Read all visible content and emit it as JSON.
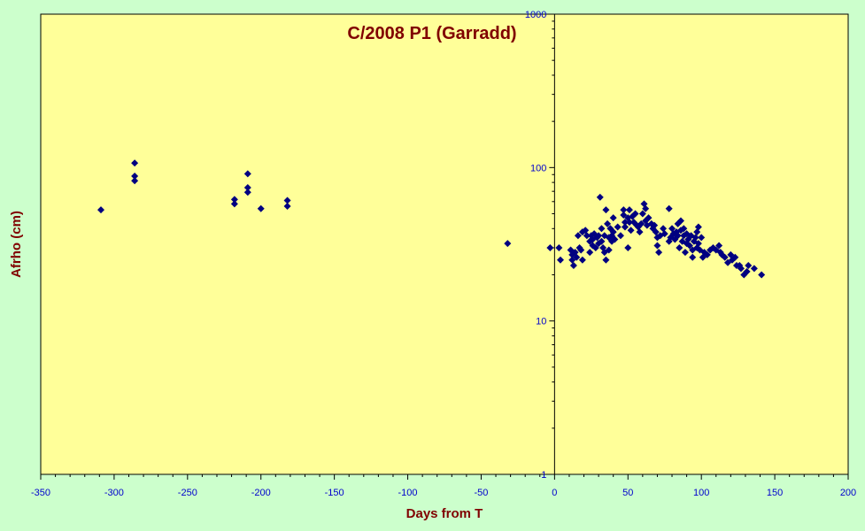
{
  "chart_data": {
    "type": "scatter",
    "title": "C/2008 P1 (Garradd)",
    "xlabel": "Days from T",
    "ylabel": "Afrho (cm)",
    "xlim": [
      -350,
      200
    ],
    "ylim": [
      1,
      1000
    ],
    "y_scale": "log",
    "x_major_ticks": [
      -350,
      -300,
      -250,
      -200,
      -150,
      -100,
      -50,
      0,
      50,
      100,
      150,
      200
    ],
    "x_tick_labels": [
      "-350",
      "-300",
      "-250",
      "-200",
      "-150",
      "-100",
      "-50",
      "0",
      "50",
      "100",
      "150",
      "200"
    ],
    "y_major_ticks": [
      1,
      10,
      100,
      1000
    ],
    "y_tick_labels": [
      "1",
      "10",
      "100",
      "1000"
    ],
    "grid": false,
    "legend": "none",
    "colors": {
      "background": "#ccffcc",
      "plot_area": "#ffff99",
      "marker": "#000080",
      "title": "#800000",
      "tick_labels": "#0000cc"
    },
    "series": [
      {
        "marker": "diamond",
        "points": [
          [
            -309,
            53
          ],
          [
            -286,
            107
          ],
          [
            -286,
            88
          ],
          [
            -286,
            82
          ],
          [
            -218,
            62
          ],
          [
            -218,
            58
          ],
          [
            -209,
            91
          ],
          [
            -209,
            74
          ],
          [
            -209,
            69
          ],
          [
            -200,
            54
          ],
          [
            -182,
            61
          ],
          [
            -182,
            56
          ],
          [
            -32,
            32
          ],
          [
            -3,
            30
          ],
          [
            3,
            30
          ],
          [
            4,
            25
          ],
          [
            11,
            29
          ],
          [
            12,
            27
          ],
          [
            12,
            25
          ],
          [
            13,
            23
          ],
          [
            14,
            28
          ],
          [
            15,
            26
          ],
          [
            16,
            36
          ],
          [
            17,
            30
          ],
          [
            18,
            29
          ],
          [
            19,
            38
          ],
          [
            19,
            25
          ],
          [
            21,
            39
          ],
          [
            22,
            36
          ],
          [
            24,
            33
          ],
          [
            24,
            28
          ],
          [
            25,
            36
          ],
          [
            26,
            31
          ],
          [
            26,
            34
          ],
          [
            27,
            37
          ],
          [
            28,
            30
          ],
          [
            29,
            35
          ],
          [
            30,
            32
          ],
          [
            30,
            36
          ],
          [
            31,
            64
          ],
          [
            32,
            40
          ],
          [
            32,
            33
          ],
          [
            33,
            30
          ],
          [
            34,
            36
          ],
          [
            34,
            28
          ],
          [
            35,
            53
          ],
          [
            35,
            25
          ],
          [
            36,
            43
          ],
          [
            37,
            35
          ],
          [
            37,
            29
          ],
          [
            38,
            40
          ],
          [
            39,
            36
          ],
          [
            39,
            33
          ],
          [
            40,
            47
          ],
          [
            40,
            38
          ],
          [
            41,
            34
          ],
          [
            43,
            41
          ],
          [
            45,
            36
          ],
          [
            47,
            49
          ],
          [
            47,
            53
          ],
          [
            48,
            41
          ],
          [
            48,
            44
          ],
          [
            50,
            47
          ],
          [
            50,
            30
          ],
          [
            51,
            53
          ],
          [
            51,
            44
          ],
          [
            52,
            39
          ],
          [
            53,
            48
          ],
          [
            54,
            44
          ],
          [
            55,
            50
          ],
          [
            56,
            42
          ],
          [
            57,
            41
          ],
          [
            58,
            38
          ],
          [
            59,
            43
          ],
          [
            60,
            50
          ],
          [
            61,
            58
          ],
          [
            62,
            54
          ],
          [
            62,
            45
          ],
          [
            63,
            42
          ],
          [
            64,
            47
          ],
          [
            66,
            43
          ],
          [
            67,
            40
          ],
          [
            68,
            42
          ],
          [
            69,
            38
          ],
          [
            70,
            35
          ],
          [
            70,
            31
          ],
          [
            71,
            28
          ],
          [
            72,
            36
          ],
          [
            74,
            40
          ],
          [
            75,
            37
          ],
          [
            78,
            54
          ],
          [
            78,
            33
          ],
          [
            79,
            35
          ],
          [
            80,
            40
          ],
          [
            81,
            37
          ],
          [
            82,
            34
          ],
          [
            83,
            38
          ],
          [
            84,
            43
          ],
          [
            84,
            36
          ],
          [
            85,
            30
          ],
          [
            86,
            45
          ],
          [
            86,
            39
          ],
          [
            87,
            33
          ],
          [
            88,
            40
          ],
          [
            88,
            36
          ],
          [
            89,
            28
          ],
          [
            90,
            37
          ],
          [
            90,
            32
          ],
          [
            91,
            34
          ],
          [
            92,
            31
          ],
          [
            93,
            36
          ],
          [
            94,
            29
          ],
          [
            94,
            26
          ],
          [
            95,
            33
          ],
          [
            96,
            35
          ],
          [
            97,
            38
          ],
          [
            97,
            30
          ],
          [
            98,
            41
          ],
          [
            98,
            32
          ],
          [
            99,
            29
          ],
          [
            100,
            35
          ],
          [
            101,
            26
          ],
          [
            102,
            28
          ],
          [
            104,
            27
          ],
          [
            106,
            29
          ],
          [
            108,
            30
          ],
          [
            110,
            29
          ],
          [
            112,
            31
          ],
          [
            113,
            28
          ],
          [
            114,
            27
          ],
          [
            116,
            26
          ],
          [
            118,
            24
          ],
          [
            120,
            27
          ],
          [
            121,
            25
          ],
          [
            123,
            26
          ],
          [
            124,
            23
          ],
          [
            126,
            23
          ],
          [
            127,
            22
          ],
          [
            129,
            20
          ],
          [
            131,
            21
          ],
          [
            132,
            23
          ],
          [
            136,
            22
          ],
          [
            141,
            20
          ]
        ]
      }
    ]
  }
}
